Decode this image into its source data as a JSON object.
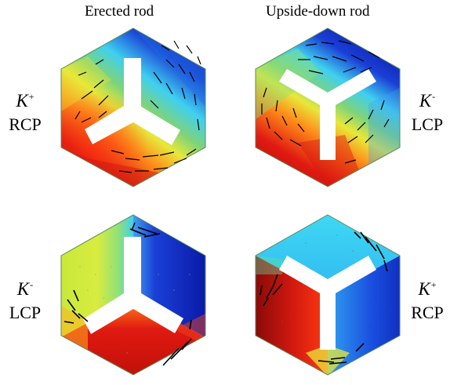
{
  "column_titles": {
    "left": "Erected rod",
    "right": "Upside-down rod"
  },
  "panels": {
    "top_left": {
      "k": "K",
      "sign": "+",
      "pol": "RCP"
    },
    "top_right": {
      "k": "K",
      "sign": "-",
      "pol": "LCP"
    },
    "bottom_left": {
      "k": "K",
      "sign": "-",
      "pol": "LCP"
    },
    "bottom_right": {
      "k": "K",
      "sign": "+",
      "pol": "RCP"
    }
  },
  "colors": {
    "red": "#e01a12",
    "orange": "#ff8c1a",
    "yellow": "#e8e83a",
    "green": "#7fd37a",
    "cyan": "#3fd0f0",
    "blue": "#1a3fd6",
    "dark_blue": "#0a1aa8",
    "hole": "#ffffff",
    "arrow": "#000000"
  }
}
